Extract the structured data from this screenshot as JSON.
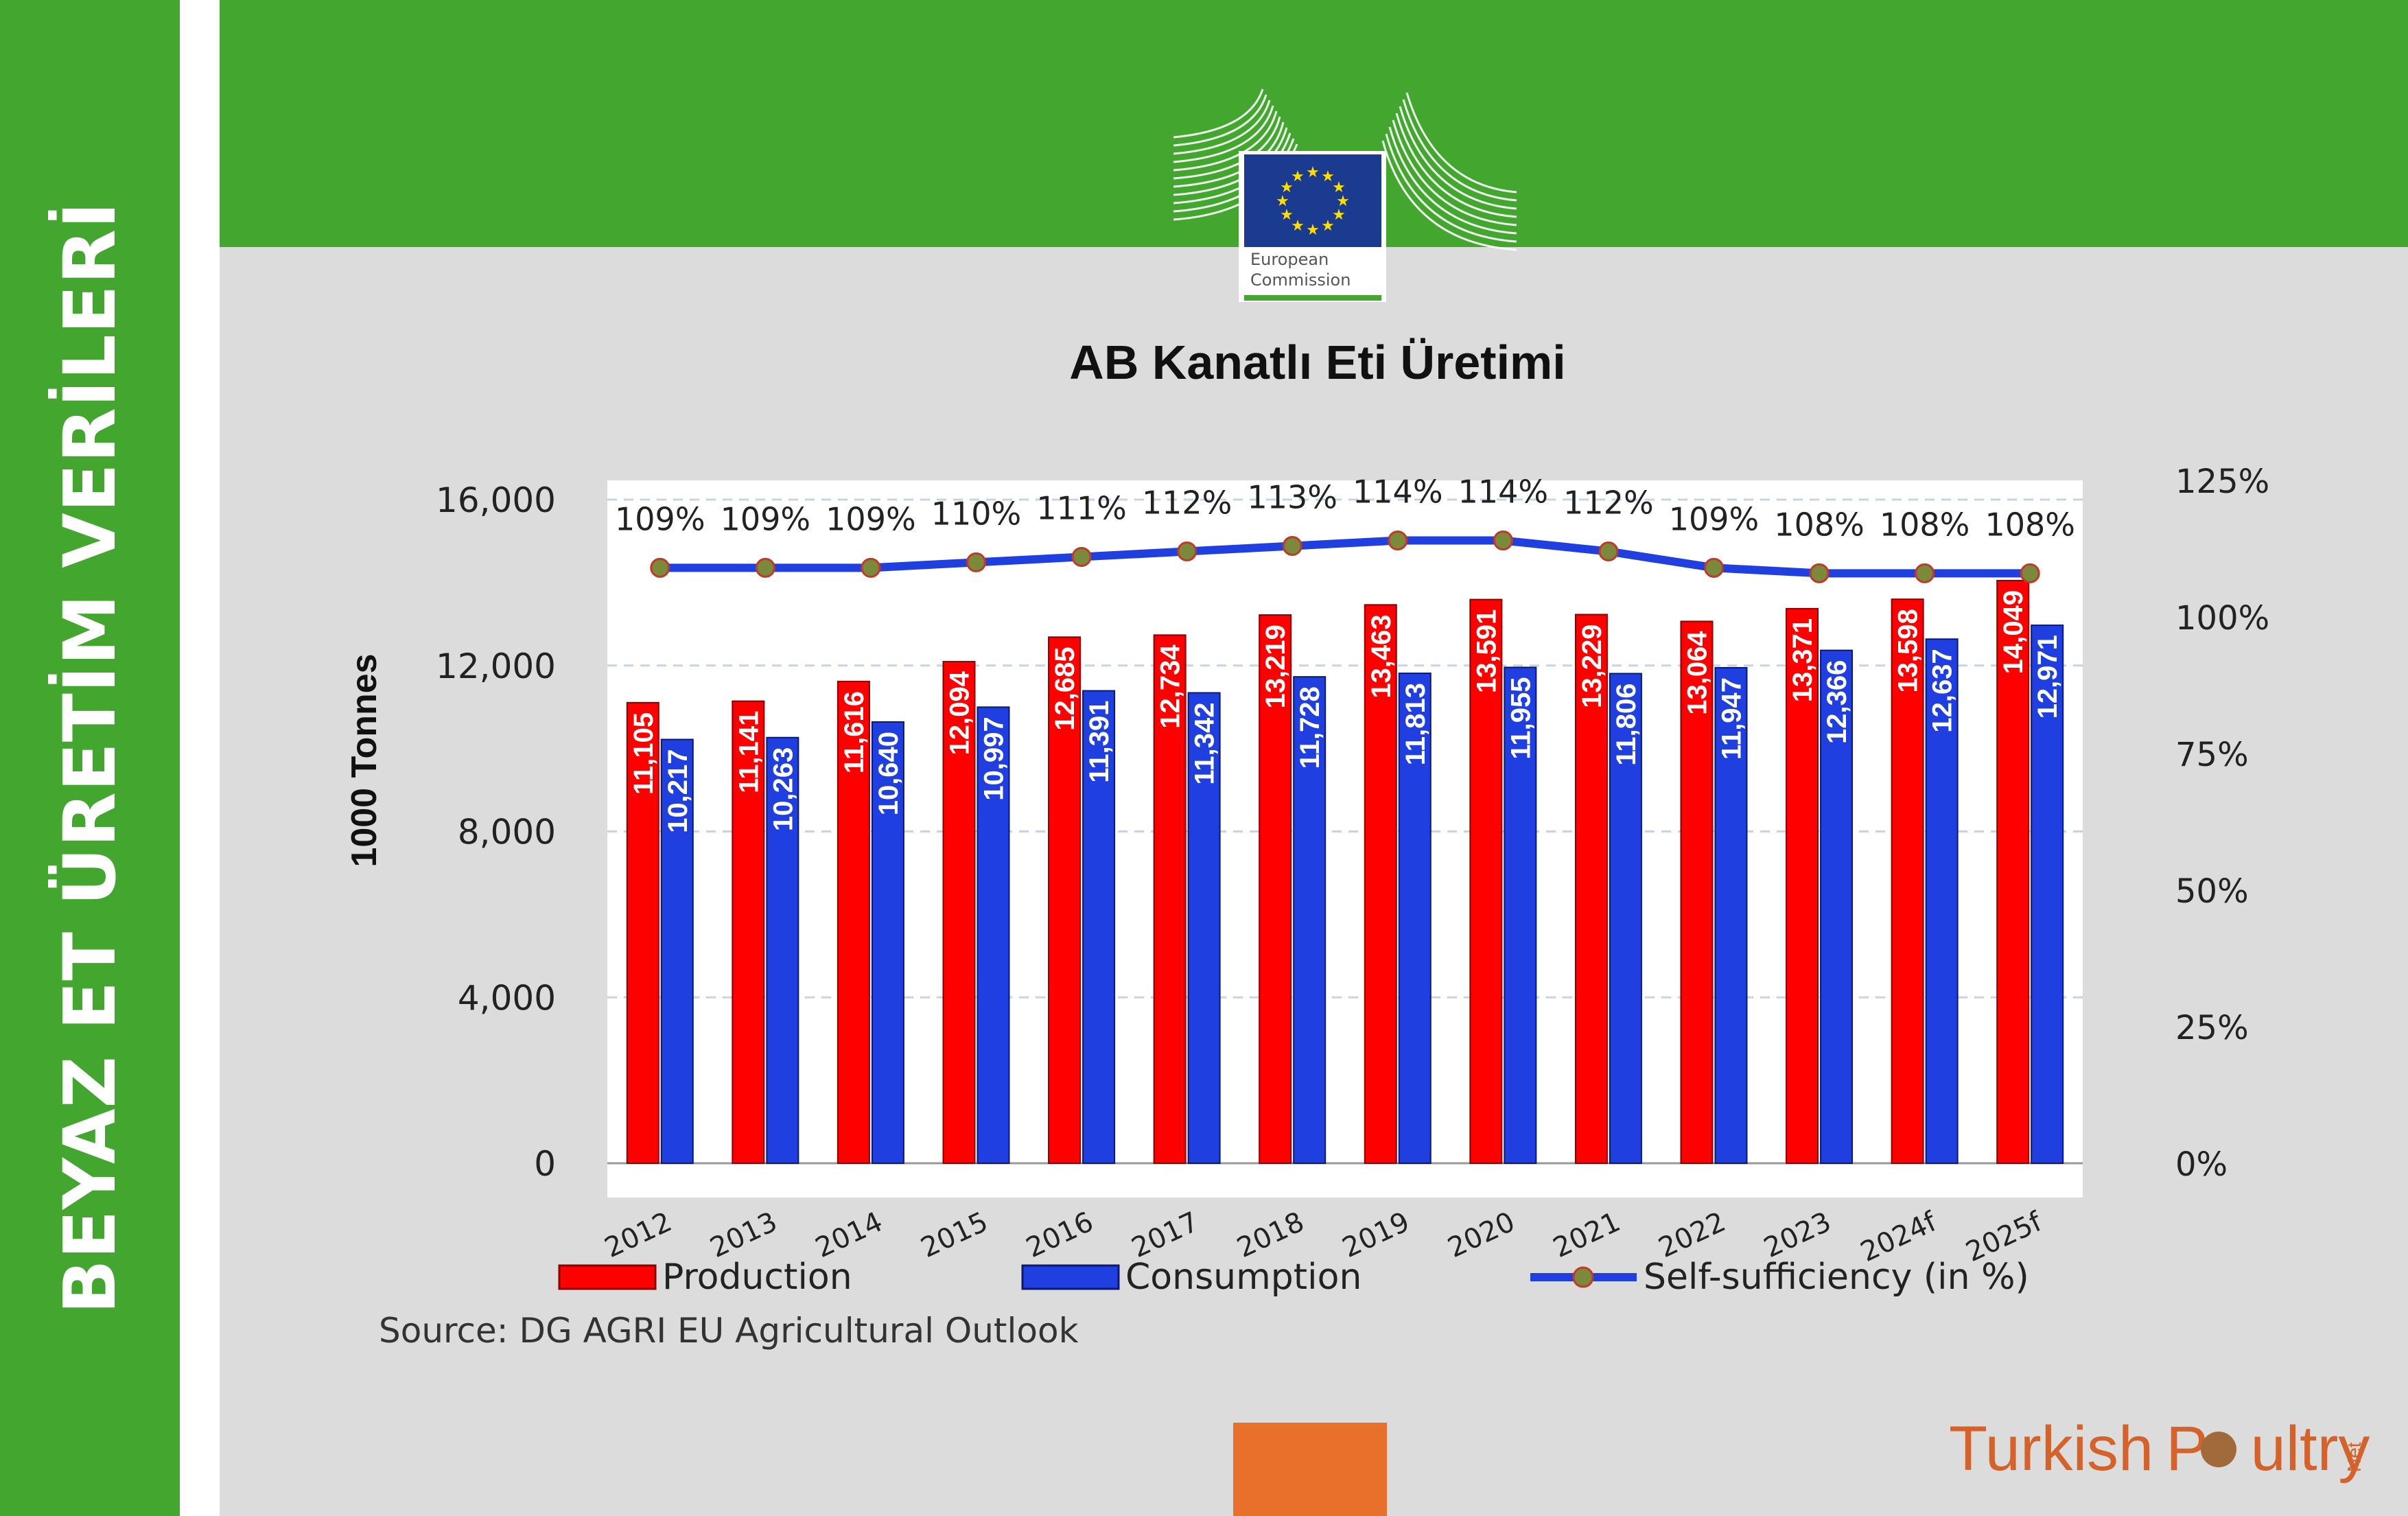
{
  "side_title": "BEYAZ ET ÜRETİM VERİLERİ",
  "logo": {
    "line1": "European",
    "line2": "Commission",
    "icon": "eu-flag-building-icon"
  },
  "page_title": "AB Kanatlı Eti Üretimi",
  "source": "Source: DG AGRI EU Agricultural Outlook",
  "brand": {
    "turkish": "Turkish",
    "poultry_p": "P",
    "poultry_rest": "ultry",
    "net": "Net"
  },
  "colors": {
    "green": "#43a62f",
    "production": "#ff0000",
    "consumption": "#1f3fe0",
    "line": "#1f3fe0",
    "orange": "#e8702a",
    "brand": "#d4622a"
  },
  "chart_data": {
    "type": "bar",
    "categories": [
      "2012",
      "2013",
      "2014",
      "2015",
      "2016",
      "2017",
      "2018",
      "2019",
      "2020",
      "2021",
      "2022",
      "2023",
      "2024f",
      "2025f"
    ],
    "series": [
      {
        "name": "Production",
        "values": [
          11105,
          11141,
          11616,
          12094,
          12685,
          12734,
          13219,
          13463,
          13591,
          13229,
          13064,
          13371,
          13598,
          14049
        ],
        "labels": [
          "11,105",
          "11,141",
          "11,616",
          "12,094",
          "12,685",
          "12,734",
          "13,219",
          "13,463",
          "13,591",
          "13,229",
          "13,064",
          "13,371",
          "13,598",
          "14,049"
        ]
      },
      {
        "name": "Consumption",
        "values": [
          10217,
          10263,
          10640,
          10997,
          11391,
          11342,
          11728,
          11813,
          11955,
          11806,
          11947,
          12366,
          12637,
          12971
        ],
        "labels": [
          "10,217",
          "10,263",
          "10,640",
          "10,997",
          "11,391",
          "11,342",
          "11,728",
          "11,813",
          "11,955",
          "11,806",
          "11,947",
          "12,366",
          "12,637",
          "12,971"
        ]
      }
    ],
    "line": {
      "name": "Self-sufficiency (in %)",
      "values": [
        109,
        109,
        109,
        110,
        111,
        112,
        113,
        114,
        114,
        112,
        109,
        108,
        108,
        108
      ],
      "labels": [
        "109%",
        "109%",
        "109%",
        "110%",
        "111%",
        "112%",
        "113%",
        "114%",
        "114%",
        "112%",
        "109%",
        "108%",
        "108%",
        "108%"
      ]
    },
    "ylabel": "1000 Tonnes",
    "ylim": [
      0,
      16000
    ],
    "y_ticks": [
      "16,000",
      "12,000",
      "8,000",
      "4,000",
      "0"
    ],
    "y_tick_values": [
      16000,
      12000,
      8000,
      4000,
      0
    ],
    "y2lim": [
      0,
      125
    ],
    "y2_ticks": [
      "125%",
      "100%",
      "75%",
      "50%",
      "25%",
      "0%"
    ],
    "y2_tick_values": [
      125,
      100,
      75,
      50,
      25,
      0
    ],
    "grid": true,
    "legend": "bottom"
  }
}
